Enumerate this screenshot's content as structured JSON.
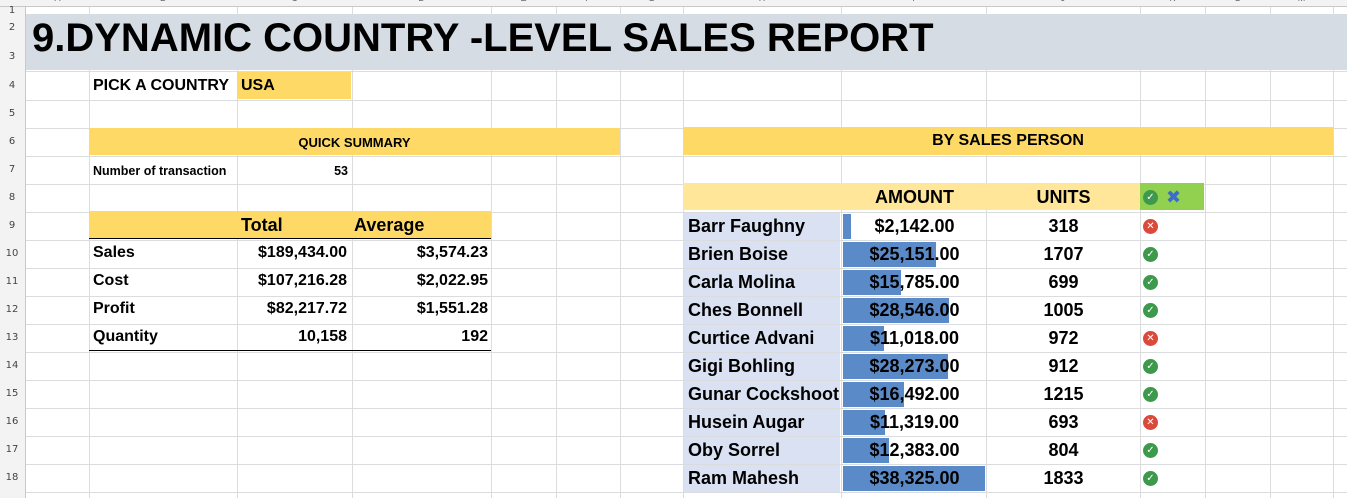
{
  "columns": [
    "A",
    "B",
    "C",
    "D",
    "E",
    "F",
    "G",
    "H",
    "I",
    "J",
    "K",
    "L",
    "M"
  ],
  "rows": [
    "1",
    "2",
    "3",
    "4",
    "5",
    "6",
    "7",
    "8",
    "9",
    "10",
    "11",
    "12",
    "13",
    "14",
    "15",
    "16",
    "17",
    "18"
  ],
  "title": "9.DYNAMIC COUNTRY -LEVEL SALES REPORT",
  "pick": {
    "label": "PICK A COUNTRY",
    "value": "USA"
  },
  "quick_summary": {
    "title": "QUICK SUMMARY",
    "transactions_label": "Number of transaction",
    "transactions_value": "53"
  },
  "summary_table": {
    "headers": [
      "Total",
      "Average"
    ],
    "rows": [
      {
        "label": "Sales",
        "total": "$189,434.00",
        "average": "$3,574.23"
      },
      {
        "label": "Cost",
        "total": "$107,216.28",
        "average": "$2,022.95"
      },
      {
        "label": "Profit",
        "total": "$82,217.72",
        "average": "$1,551.28"
      },
      {
        "label": "Quantity",
        "total": "10,158",
        "average": "192"
      }
    ]
  },
  "by_sales_person": {
    "title": "BY SALES PERSON",
    "headers": {
      "amount": "AMOUNT",
      "units": "UNITS"
    },
    "bar_color": "#5b8ac9",
    "max_amount": 38325,
    "rows": [
      {
        "name": "Barr Faughny",
        "amount": "$2,142.00",
        "amount_value": 2142,
        "units": "318",
        "status": "bad"
      },
      {
        "name": "Brien Boise",
        "amount": "$25,151.00",
        "amount_value": 25151,
        "units": "1707",
        "status": "ok"
      },
      {
        "name": "Carla Molina",
        "amount": "$15,785.00",
        "amount_value": 15785,
        "units": "699",
        "status": "ok"
      },
      {
        "name": "Ches Bonnell",
        "amount": "$28,546.00",
        "amount_value": 28546,
        "units": "1005",
        "status": "ok"
      },
      {
        "name": "Curtice Advani",
        "amount": "$11,018.00",
        "amount_value": 11018,
        "units": "972",
        "status": "bad"
      },
      {
        "name": "Gigi Bohling",
        "amount": "$28,273.00",
        "amount_value": 28273,
        "units": "912",
        "status": "ok"
      },
      {
        "name": "Gunar Cockshoot",
        "amount": "$16,492.00",
        "amount_value": 16492,
        "units": "1215",
        "status": "ok"
      },
      {
        "name": "Husein Augar",
        "amount": "$11,319.00",
        "amount_value": 11319,
        "units": "693",
        "status": "bad"
      },
      {
        "name": "Oby Sorrel",
        "amount": "$12,383.00",
        "amount_value": 12383,
        "units": "804",
        "status": "ok"
      },
      {
        "name": "Ram Mahesh",
        "amount": "$38,325.00",
        "amount_value": 38325,
        "units": "1833",
        "status": "ok"
      }
    ]
  },
  "icons": {
    "ok": "check-circle-icon",
    "bad": "x-circle-icon",
    "filter_x": "x-mark-icon"
  }
}
